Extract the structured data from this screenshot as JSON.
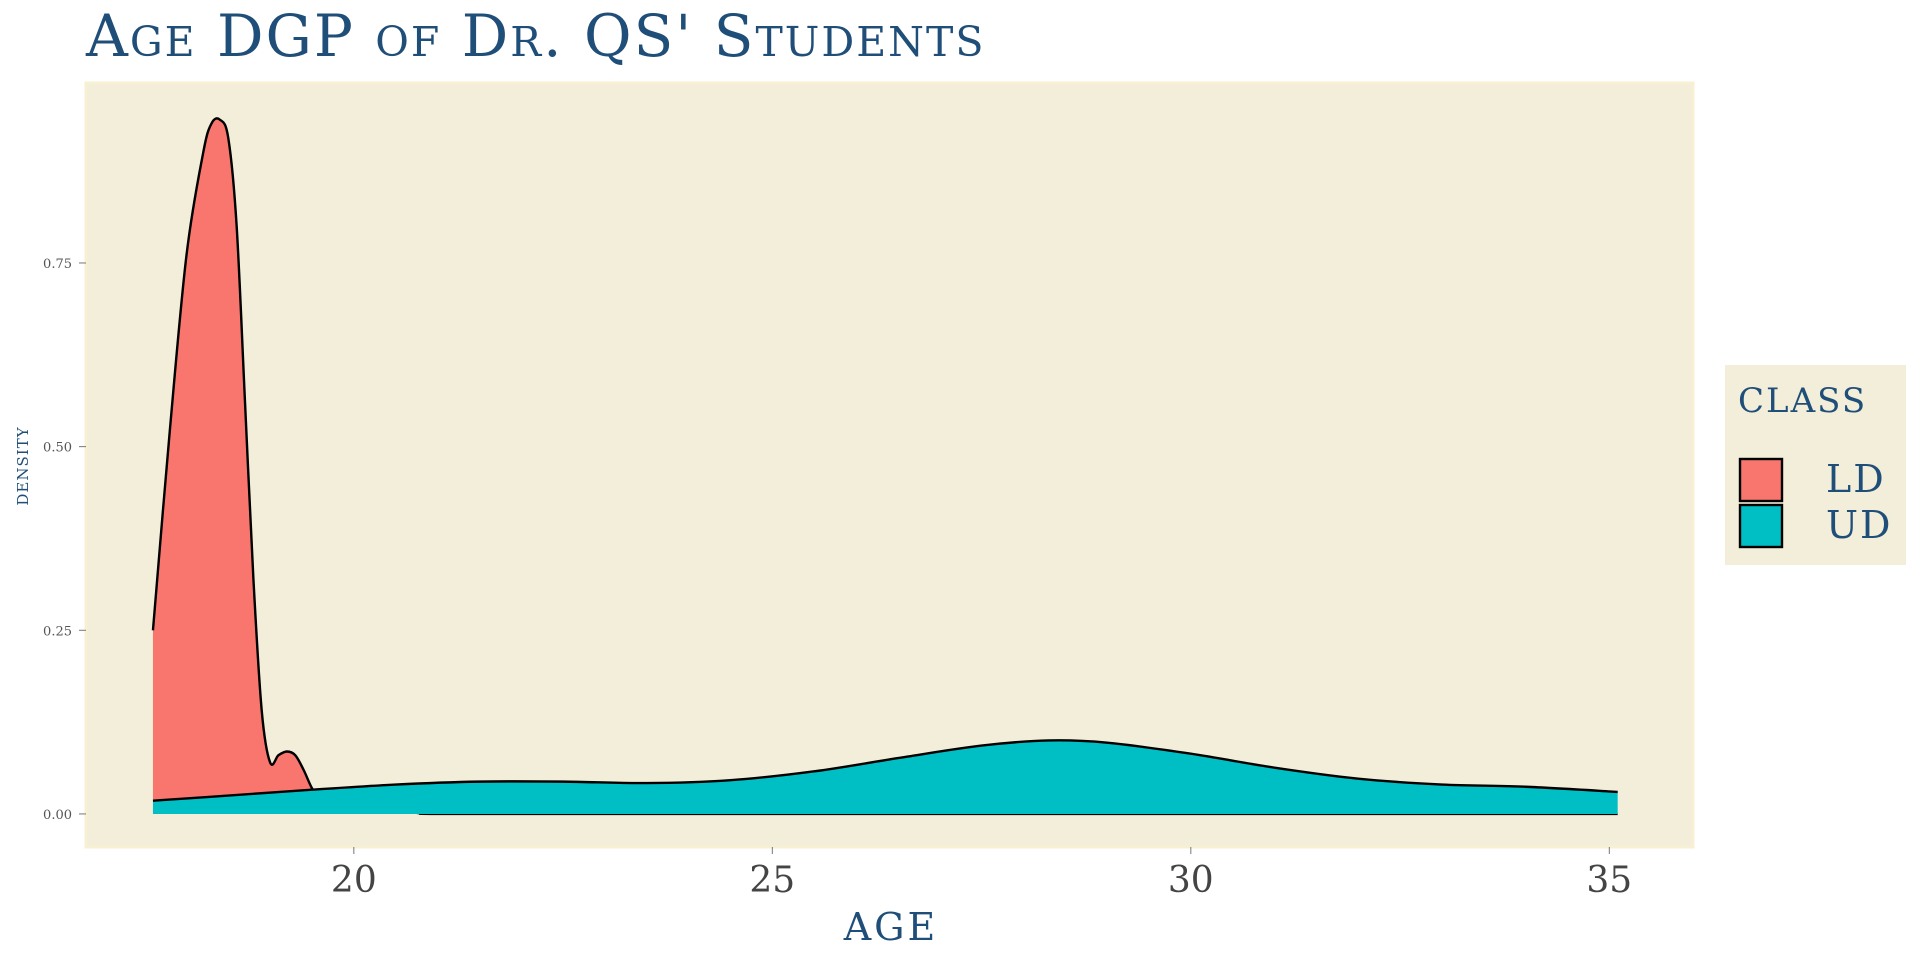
{
  "chart_data": {
    "type": "area",
    "title": "Age DGP of Dr. QS' Students",
    "xlabel": "AGE",
    "ylabel": "DENSITY",
    "xlim": [
      16.8,
      36.0
    ],
    "ylim": [
      -0.045,
      0.995
    ],
    "x_ticks": [
      20,
      25,
      30,
      35
    ],
    "x_tick_labels": [
      "20",
      "25",
      "30",
      "35"
    ],
    "y_ticks": [
      0.0,
      0.25,
      0.5,
      0.75
    ],
    "y_tick_labels": [
      "0.00",
      "0.25",
      "0.50",
      "0.75"
    ],
    "grid": false,
    "legend": {
      "title": "CLASS",
      "position": "right"
    },
    "series": [
      {
        "name": "LD",
        "color": "#F8766D",
        "x": [
          17.6,
          17.8,
          18.0,
          18.2,
          18.3,
          18.4,
          18.5,
          18.6,
          18.7,
          18.8,
          18.9,
          19.0,
          19.1,
          19.2,
          19.3,
          19.4,
          19.5,
          19.6,
          19.7,
          19.8,
          20.0,
          20.2,
          20.3,
          20.4,
          20.6,
          20.8,
          21.0,
          23.0,
          26.0,
          30.0,
          33.0,
          35.1
        ],
        "y": [
          0.25,
          0.52,
          0.76,
          0.9,
          0.94,
          0.945,
          0.92,
          0.8,
          0.56,
          0.32,
          0.14,
          0.07,
          0.08,
          0.085,
          0.08,
          0.06,
          0.035,
          0.02,
          0.015,
          0.012,
          0.012,
          0.025,
          0.03,
          0.02,
          0.005,
          0.001,
          0.0,
          0.0,
          0.0,
          0.0,
          0.0,
          0.0
        ]
      },
      {
        "name": "UD",
        "color": "#00BFC4",
        "x": [
          17.6,
          18.5,
          19.5,
          20.5,
          21.5,
          22.5,
          23.5,
          24.5,
          25.5,
          26.5,
          27.5,
          28.3,
          29.0,
          30.0,
          31.0,
          32.0,
          33.0,
          34.0,
          35.1
        ],
        "y": [
          0.018,
          0.025,
          0.033,
          0.04,
          0.044,
          0.044,
          0.042,
          0.046,
          0.058,
          0.076,
          0.093,
          0.1,
          0.097,
          0.082,
          0.063,
          0.048,
          0.04,
          0.037,
          0.03
        ]
      }
    ]
  },
  "colors": {
    "panel_background": "#F2EED9",
    "panel_border": "#F7F0D3",
    "legend_background": "#F2EED9",
    "title_color": "#1f4e79",
    "curve_outline": "#000000"
  }
}
